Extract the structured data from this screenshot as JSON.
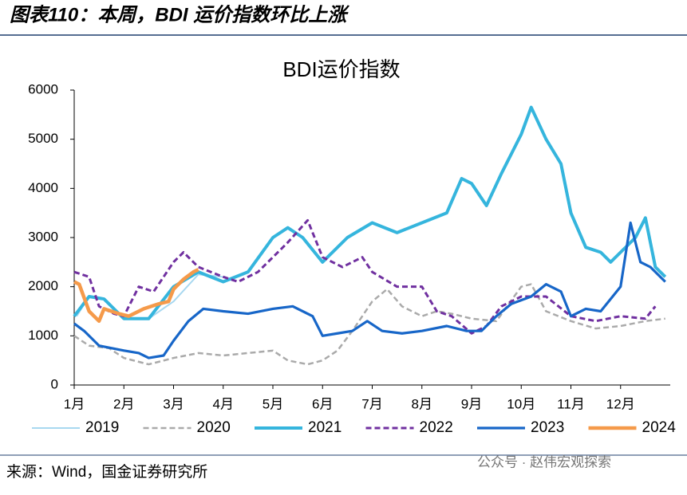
{
  "header": {
    "title": "图表110：本周，BDI 运价指数环比上涨"
  },
  "chart_data": {
    "type": "line",
    "title": "BDI运价指数",
    "xlim": [
      1,
      13
    ],
    "xticks": [
      {
        "value": 1,
        "label": "1月"
      },
      {
        "value": 2,
        "label": "2月"
      },
      {
        "value": 3,
        "label": "3月"
      },
      {
        "value": 4,
        "label": "4月"
      },
      {
        "value": 5,
        "label": "5月"
      },
      {
        "value": 6,
        "label": "6月"
      },
      {
        "value": 7,
        "label": "7月"
      },
      {
        "value": 8,
        "label": "8月"
      },
      {
        "value": 9,
        "label": "9月"
      },
      {
        "value": 10,
        "label": "10月"
      },
      {
        "value": 11,
        "label": "11月"
      },
      {
        "value": 12,
        "label": "12月"
      }
    ],
    "ylim": [
      0,
      6000
    ],
    "yticks": [
      0,
      1000,
      2000,
      3000,
      4000,
      5000,
      6000
    ],
    "legend": "bottom",
    "series": [
      {
        "name": "2019",
        "color": "#a8d8f0",
        "dash": false,
        "x": [
          1.05,
          1.3,
          1.6,
          2.0,
          2.5,
          3.0,
          3.5,
          4.0
        ],
        "values": [
          1400,
          1800,
          1750,
          1350,
          1350,
          1700,
          2250,
          2200
        ]
      },
      {
        "name": "2020",
        "color": "#aaaaaa",
        "dash": true,
        "x": [
          1.0,
          1.3,
          1.7,
          2.0,
          2.5,
          3.0,
          3.5,
          4.0,
          4.5,
          5.0,
          5.3,
          5.7,
          6.0,
          6.3,
          6.6,
          7.0,
          7.3,
          7.6,
          8.0,
          8.3,
          8.6,
          9.0,
          9.5,
          10.0,
          10.2,
          10.5,
          11.0,
          11.5,
          12.0,
          12.5,
          12.9
        ],
        "values": [
          1000,
          800,
          750,
          550,
          420,
          550,
          650,
          600,
          650,
          700,
          500,
          420,
          500,
          700,
          1100,
          1700,
          1950,
          1600,
          1400,
          1500,
          1450,
          1350,
          1300,
          2000,
          2050,
          1500,
          1300,
          1150,
          1200,
          1300,
          1350
        ]
      },
      {
        "name": "2021",
        "color": "#35b5dd",
        "dash": false,
        "x": [
          1.0,
          1.3,
          1.6,
          2.0,
          2.5,
          3.0,
          3.5,
          4.0,
          4.5,
          5.0,
          5.3,
          5.6,
          6.0,
          6.5,
          7.0,
          7.5,
          8.0,
          8.5,
          8.8,
          9.0,
          9.3,
          9.6,
          10.0,
          10.2,
          10.5,
          10.8,
          11.0,
          11.3,
          11.6,
          11.8,
          12.0,
          12.3,
          12.5,
          12.7,
          12.9
        ],
        "values": [
          1400,
          1800,
          1750,
          1350,
          1350,
          2000,
          2300,
          2100,
          2300,
          3000,
          3200,
          3000,
          2500,
          3000,
          3300,
          3100,
          3300,
          3500,
          4200,
          4100,
          3650,
          4300,
          5100,
          5650,
          5000,
          4500,
          3500,
          2800,
          2700,
          2500,
          2700,
          3000,
          3400,
          2400,
          2200
        ]
      },
      {
        "name": "2022",
        "color": "#7030a0",
        "dash": true,
        "x": [
          1.0,
          1.3,
          1.5,
          1.8,
          2.0,
          2.3,
          2.6,
          3.0,
          3.2,
          3.5,
          4.0,
          4.3,
          4.7,
          5.0,
          5.3,
          5.7,
          6.0,
          6.4,
          6.8,
          7.0,
          7.5,
          8.0,
          8.3,
          8.6,
          9.0,
          9.3,
          9.6,
          10.0,
          10.5,
          11.0,
          11.5,
          12.0,
          12.5,
          12.7
        ],
        "values": [
          2300,
          2200,
          1600,
          1450,
          1400,
          2000,
          1900,
          2500,
          2700,
          2400,
          2200,
          2100,
          2300,
          2600,
          2900,
          3350,
          2600,
          2400,
          2600,
          2300,
          2000,
          2000,
          1500,
          1400,
          1050,
          1200,
          1600,
          1800,
          1800,
          1400,
          1300,
          1400,
          1350,
          1600
        ]
      },
      {
        "name": "2023",
        "color": "#1766c8",
        "dash": false,
        "x": [
          1.0,
          1.2,
          1.5,
          2.0,
          2.3,
          2.5,
          2.8,
          3.0,
          3.3,
          3.6,
          4.0,
          4.5,
          5.0,
          5.4,
          5.8,
          6.0,
          6.3,
          6.6,
          6.9,
          7.2,
          7.6,
          8.0,
          8.5,
          8.9,
          9.2,
          9.5,
          9.8,
          10.2,
          10.5,
          10.8,
          11.0,
          11.3,
          11.6,
          12.0,
          12.2,
          12.4,
          12.6,
          12.9
        ],
        "values": [
          1250,
          1100,
          800,
          700,
          650,
          550,
          600,
          900,
          1300,
          1550,
          1500,
          1450,
          1550,
          1600,
          1400,
          1000,
          1050,
          1100,
          1300,
          1100,
          1050,
          1100,
          1200,
          1100,
          1100,
          1400,
          1650,
          1800,
          2050,
          1900,
          1400,
          1550,
          1500,
          2000,
          3300,
          2500,
          2400,
          2100
        ]
      },
      {
        "name": "2024",
        "color": "#f59a4a",
        "dash": false,
        "x": [
          1.0,
          1.1,
          1.3,
          1.5,
          1.6,
          1.9,
          2.1,
          2.4,
          2.7,
          2.9,
          3.0,
          3.2,
          3.4,
          3.5
        ],
        "values": [
          2100,
          2050,
          1500,
          1300,
          1550,
          1450,
          1400,
          1550,
          1650,
          1700,
          1950,
          2150,
          2300,
          2350
        ]
      }
    ]
  },
  "footer": {
    "source": "来源：Wind，国金证券研究所",
    "watermark": "公众号 · 赵伟宏观探索"
  }
}
